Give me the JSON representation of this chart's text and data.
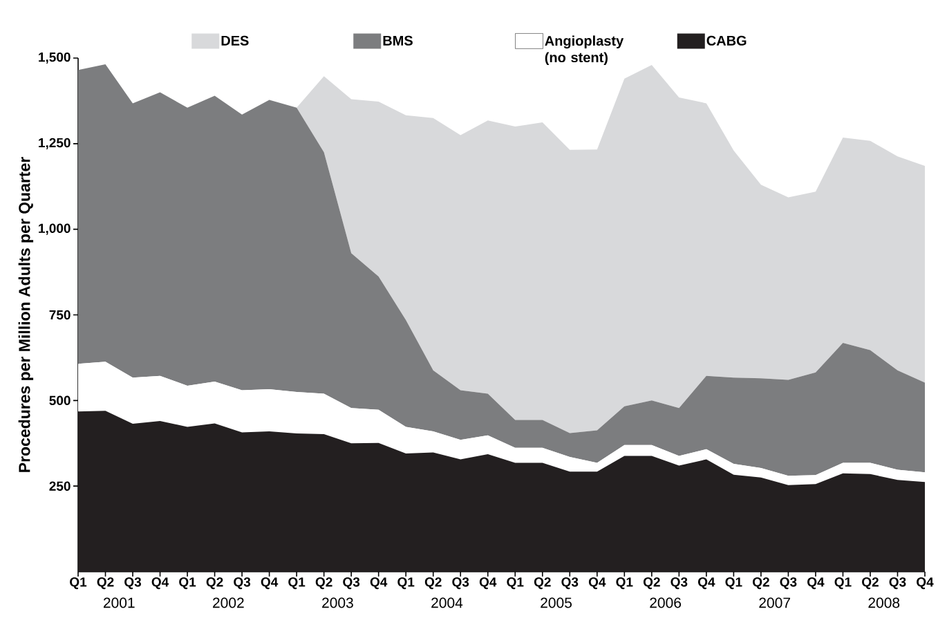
{
  "chart_data": {
    "type": "area",
    "stacked": true,
    "ylabel": "Procedures per Million Adults per Quarter",
    "categories": [
      "Q1",
      "Q2",
      "Q3",
      "Q4",
      "Q1",
      "Q2",
      "Q3",
      "Q4",
      "Q1",
      "Q2",
      "Q3",
      "Q4",
      "Q1",
      "Q2",
      "Q3",
      "Q4",
      "Q1",
      "Q2",
      "Q3",
      "Q4",
      "Q1",
      "Q2",
      "Q3",
      "Q4",
      "Q1",
      "Q2",
      "Q3",
      "Q4",
      "Q1",
      "Q2",
      "Q3",
      "Q4"
    ],
    "annotations": [
      "2001",
      "2002",
      "2003",
      "2004",
      "2005",
      "2006",
      "2007",
      "2008"
    ],
    "ylim": [
      0,
      1500
    ],
    "yticks": [
      250,
      500,
      750,
      {
        "value": 1000,
        "label": "1,000"
      },
      {
        "value": 1250,
        "label": "1,250"
      },
      {
        "value": 1500,
        "label": "1,500"
      }
    ],
    "legend": "top",
    "grid": false,
    "series": [
      {
        "name": "CABG",
        "color": "#231f20",
        "values": [
          468,
          470,
          432,
          440,
          423,
          433,
          407,
          410,
          404,
          402,
          375,
          376,
          345,
          348,
          328,
          343,
          318,
          318,
          292,
          292,
          338,
          338,
          310,
          328,
          283,
          275,
          253,
          256,
          287,
          285,
          268,
          262
        ]
      },
      {
        "name": "Angioplasty (no stent)",
        "color": "#ffffff",
        "values": [
          139,
          143,
          135,
          132,
          120,
          122,
          123,
          123,
          121,
          118,
          103,
          97,
          78,
          62,
          57,
          55,
          44,
          44,
          43,
          26,
          32,
          32,
          28,
          30,
          32,
          28,
          27,
          26,
          31,
          33,
          30,
          28
        ]
      },
      {
        "name": "BMS",
        "color": "#7c7d7f",
        "values": [
          858,
          869,
          801,
          828,
          812,
          835,
          805,
          845,
          830,
          705,
          452,
          389,
          312,
          178,
          145,
          122,
          81,
          81,
          70,
          95,
          113,
          130,
          140,
          214,
          252,
          262,
          280,
          300,
          350,
          329,
          290,
          262
        ]
      },
      {
        "name": "DES",
        "color": "#d8d9db",
        "values": [
          0,
          0,
          0,
          0,
          0,
          0,
          0,
          0,
          0,
          222,
          450,
          511,
          598,
          737,
          745,
          798,
          857,
          869,
          827,
          820,
          957,
          980,
          907,
          796,
          663,
          565,
          533,
          528,
          600,
          611,
          625,
          633
        ]
      }
    ]
  }
}
